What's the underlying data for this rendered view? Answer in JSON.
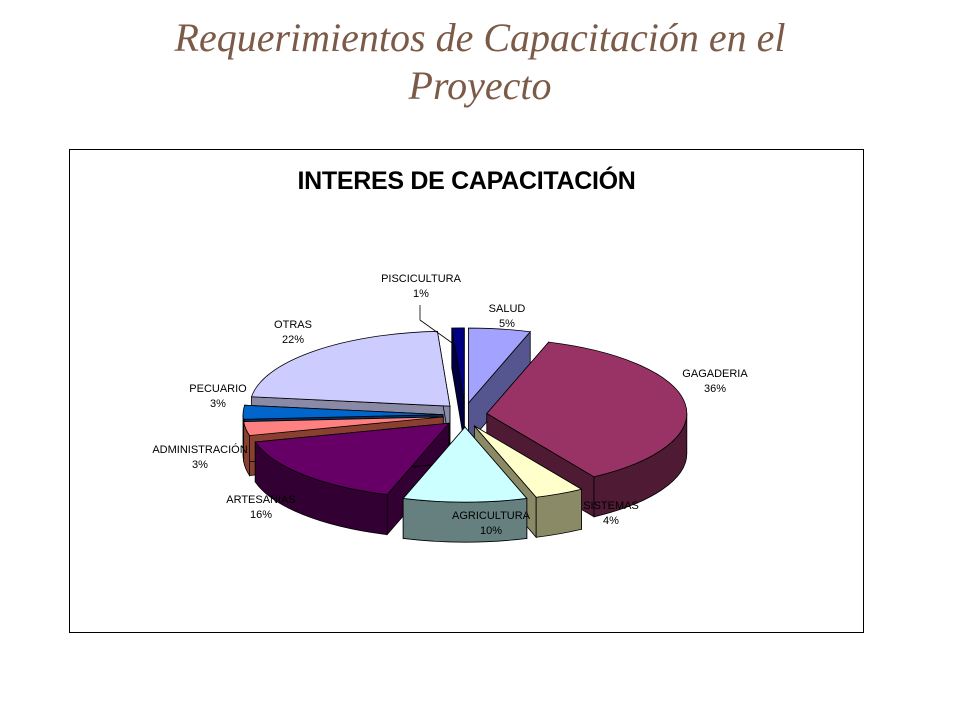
{
  "page": {
    "title_line1": "Requerimientos de Capacitación en el",
    "title_line2": "Proyecto"
  },
  "chart_data": {
    "type": "pie",
    "title": "INTERES DE CAPACITACIÓN",
    "three_d": true,
    "exploded": true,
    "slices": [
      {
        "label": "SALUD",
        "value": 5,
        "value_label": "5%",
        "color": "#a3a3ff",
        "side_color": "#55558f"
      },
      {
        "label": "GAGADERIA",
        "value": 36,
        "value_label": "36%",
        "color": "#993366",
        "side_color": "#4f1a34"
      },
      {
        "label": "SISTEMAS",
        "value": 4,
        "value_label": "4%",
        "color": "#ffffcc",
        "side_color": "#8a8a66"
      },
      {
        "label": "AGRICULTURA",
        "value": 10,
        "value_label": "10%",
        "color": "#ccffff",
        "side_color": "#668080"
      },
      {
        "label": "ARTESANIAS",
        "value": 16,
        "value_label": "16%",
        "color": "#660066",
        "side_color": "#330033"
      },
      {
        "label": "ADMINISTRACIÓN",
        "value": 3,
        "value_label": "3%",
        "color": "#ff8080",
        "side_color": "#8a4030"
      },
      {
        "label": "PECUARIO",
        "value": 3,
        "value_label": "3%",
        "color": "#0066cc",
        "side_color": "#003366"
      },
      {
        "label": "OTRAS",
        "value": 22,
        "value_label": "22%",
        "color": "#ccccff",
        "side_color": "#8a8aa6"
      },
      {
        "label": "PISCICULTURA",
        "value": 1,
        "value_label": "1%",
        "color": "#000080",
        "side_color": "#000040"
      }
    ]
  }
}
